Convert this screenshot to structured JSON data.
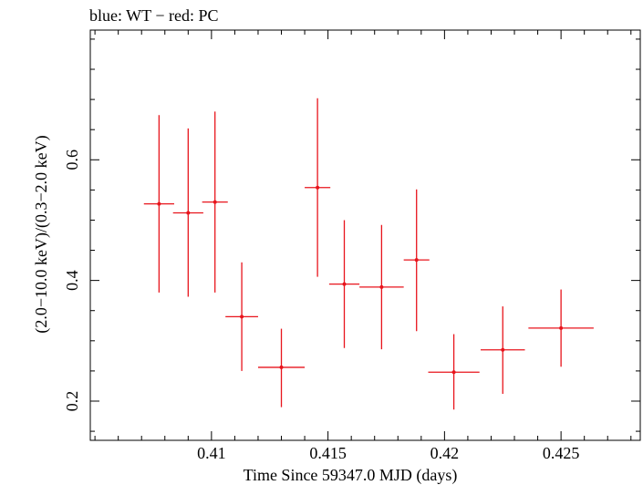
{
  "chart_data": {
    "type": "scatter",
    "title": "blue: WT − red: PC",
    "xlabel": "Time Since 59347.0 MJD (days)",
    "ylabel": "(2.0−10.0 keV)/(0.3−2.0 keV)",
    "xlim": [
      0.4048,
      0.4284
    ],
    "ylim": [
      0.135,
      0.815
    ],
    "x_ticks": [
      0.41,
      0.415,
      0.42,
      0.425
    ],
    "x_tick_labels": [
      "0.41",
      "0.415",
      "0.42",
      "0.425"
    ],
    "y_ticks": [
      0.2,
      0.4,
      0.6
    ],
    "y_tick_labels": [
      "0.2",
      "0.4",
      "0.6"
    ],
    "grid": false,
    "series": [
      {
        "color": "#e8141c",
        "points": [
          {
            "x": 0.40775,
            "y": 0.527,
            "xerr": 0.00065,
            "ylo": 0.38,
            "yhi": 0.674
          },
          {
            "x": 0.409,
            "y": 0.512,
            "xerr": 0.00065,
            "ylo": 0.373,
            "yhi": 0.652
          },
          {
            "x": 0.41015,
            "y": 0.53,
            "xerr": 0.00055,
            "ylo": 0.38,
            "yhi": 0.68
          },
          {
            "x": 0.4113,
            "y": 0.34,
            "xerr": 0.0007,
            "ylo": 0.25,
            "yhi": 0.43
          },
          {
            "x": 0.413,
            "y": 0.256,
            "xerr": 0.001,
            "ylo": 0.19,
            "yhi": 0.32
          },
          {
            "x": 0.41455,
            "y": 0.554,
            "xerr": 0.00055,
            "ylo": 0.406,
            "yhi": 0.702
          },
          {
            "x": 0.4157,
            "y": 0.394,
            "xerr": 0.00065,
            "ylo": 0.288,
            "yhi": 0.5
          },
          {
            "x": 0.4173,
            "y": 0.389,
            "xerr": 0.00095,
            "ylo": 0.286,
            "yhi": 0.492
          },
          {
            "x": 0.4188,
            "y": 0.434,
            "xerr": 0.00055,
            "ylo": 0.316,
            "yhi": 0.551
          },
          {
            "x": 0.4204,
            "y": 0.248,
            "xerr": 0.0011,
            "ylo": 0.186,
            "yhi": 0.311
          },
          {
            "x": 0.4225,
            "y": 0.285,
            "xerr": 0.00095,
            "ylo": 0.212,
            "yhi": 0.357
          },
          {
            "x": 0.425,
            "y": 0.321,
            "xerr": 0.0014,
            "ylo": 0.257,
            "yhi": 0.385
          }
        ]
      }
    ]
  }
}
